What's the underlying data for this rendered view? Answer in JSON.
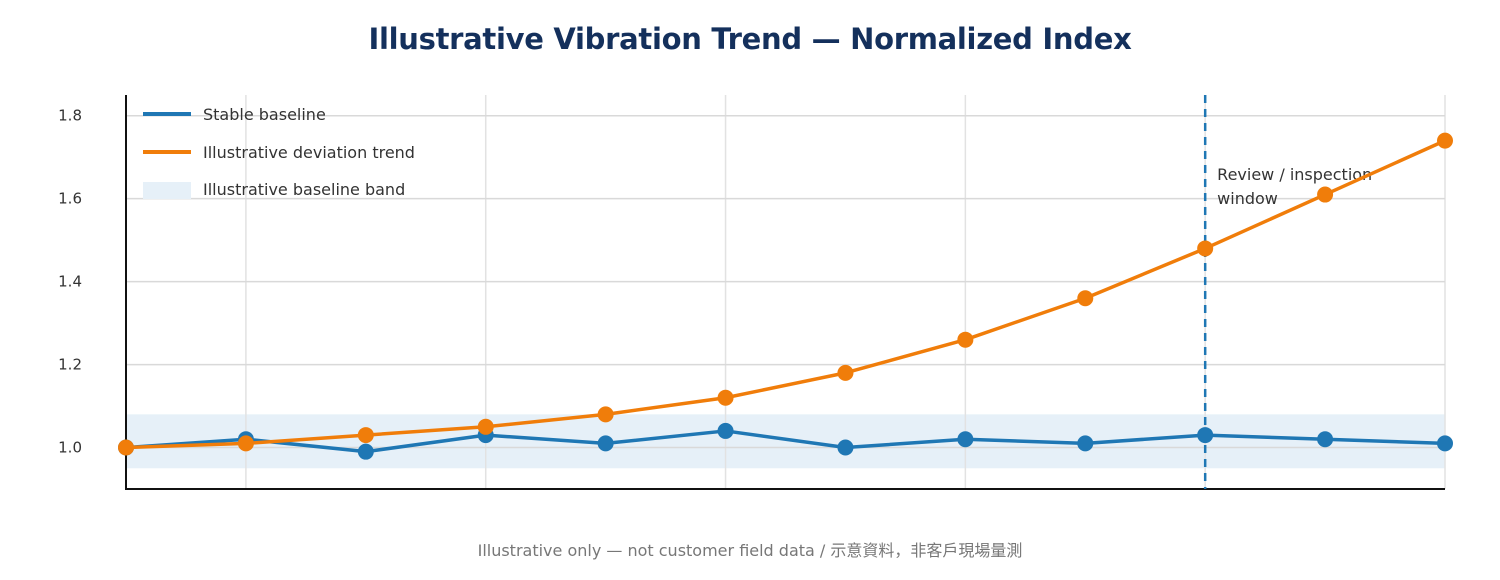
{
  "chart_data": {
    "type": "line",
    "title": "Illustrative Vibration Trend — Normalized Index",
    "xlabel": "",
    "ylabel": "",
    "x": [
      0,
      1,
      2,
      3,
      4,
      5,
      6,
      7,
      8,
      9,
      10,
      11
    ],
    "xlim": [
      0,
      11
    ],
    "ylim": [
      0.9,
      1.85
    ],
    "yticks": [
      1.0,
      1.2,
      1.4,
      1.6,
      1.8
    ],
    "ytick_labels": [
      "1.0",
      "1.2",
      "1.4",
      "1.6",
      "1.8"
    ],
    "grid": true,
    "legend_position": "top-left",
    "series": [
      {
        "name": "Stable baseline",
        "color": "#1f77b4",
        "values": [
          1.0,
          1.02,
          0.99,
          1.03,
          1.01,
          1.04,
          1.0,
          1.02,
          1.01,
          1.03,
          1.02,
          1.01
        ]
      },
      {
        "name": "Illustrative deviation trend",
        "color": "#f07d0a",
        "values": [
          1.0,
          1.01,
          1.03,
          1.05,
          1.08,
          1.12,
          1.18,
          1.26,
          1.36,
          1.48,
          1.61,
          1.74
        ]
      }
    ],
    "band": {
      "name": "Illustrative baseline band",
      "color": "#e6f0f8",
      "range": [
        0.95,
        1.08
      ]
    },
    "vline": {
      "x": 9,
      "color": "#1f77b4",
      "label_lines": [
        "Review / inspection",
        "window"
      ]
    }
  },
  "footnote": "Illustrative only — not customer field data / 示意資料，非客戶現場量測"
}
